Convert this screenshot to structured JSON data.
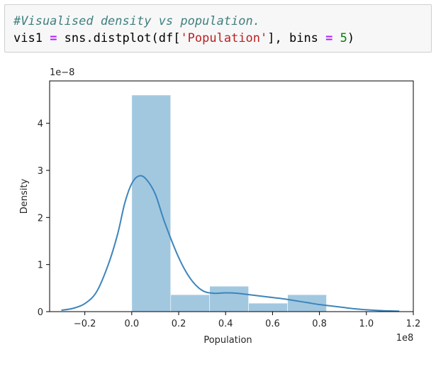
{
  "code": {
    "comment": "#Visualised density vs population.",
    "line2": {
      "var": "vis1 ",
      "op_assign": "=",
      "call": " sns.distplot(df[",
      "str": "'Population'",
      "mid": "], bins ",
      "op_eq": "=",
      "space": " ",
      "num": "5",
      "close": ")"
    }
  },
  "chart_data": {
    "type": "bar",
    "kind": "histogram with KDE",
    "xlabel": "Population",
    "ylabel": "Density",
    "x_offset_label": "1e8",
    "y_offset_label": "1e−8",
    "xlim": [
      -0.35,
      1.2
    ],
    "ylim": [
      0,
      4.9
    ],
    "x_ticks": [
      -0.2,
      0.0,
      0.2,
      0.4,
      0.6,
      0.8,
      1.0,
      1.2
    ],
    "x_tick_labels": [
      "−0.2",
      "0.0",
      "0.2",
      "0.4",
      "0.6",
      "0.8",
      "1.0",
      "1.2"
    ],
    "y_ticks": [
      0,
      1,
      2,
      3,
      4
    ],
    "y_tick_labels": [
      "0",
      "1",
      "2",
      "3",
      "4"
    ],
    "bins": [
      {
        "x0": 0.0,
        "x1": 0.166,
        "height": 4.6
      },
      {
        "x0": 0.166,
        "x1": 0.332,
        "height": 0.36
      },
      {
        "x0": 0.332,
        "x1": 0.498,
        "height": 0.54
      },
      {
        "x0": 0.498,
        "x1": 0.664,
        "height": 0.18
      },
      {
        "x0": 0.664,
        "x1": 0.83,
        "height": 0.36
      }
    ],
    "kde": {
      "x": [
        -0.3,
        -0.25,
        -0.2,
        -0.15,
        -0.1,
        -0.06,
        -0.03,
        0.0,
        0.03,
        0.06,
        0.1,
        0.14,
        0.2,
        0.25,
        0.3,
        0.35,
        0.4,
        0.45,
        0.5,
        0.55,
        0.6,
        0.65,
        0.7,
        0.75,
        0.8,
        0.85,
        0.9,
        0.95,
        1.0,
        1.05,
        1.1,
        1.14
      ],
      "y": [
        0.03,
        0.07,
        0.17,
        0.42,
        1.0,
        1.65,
        2.3,
        2.72,
        2.88,
        2.82,
        2.5,
        1.9,
        1.15,
        0.7,
        0.45,
        0.39,
        0.4,
        0.39,
        0.36,
        0.33,
        0.3,
        0.27,
        0.23,
        0.19,
        0.15,
        0.12,
        0.09,
        0.06,
        0.04,
        0.025,
        0.015,
        0.01
      ]
    },
    "bar_color": "#a2c8e0",
    "line_color": "#3d85bb",
    "grid": false,
    "legend": false
  }
}
